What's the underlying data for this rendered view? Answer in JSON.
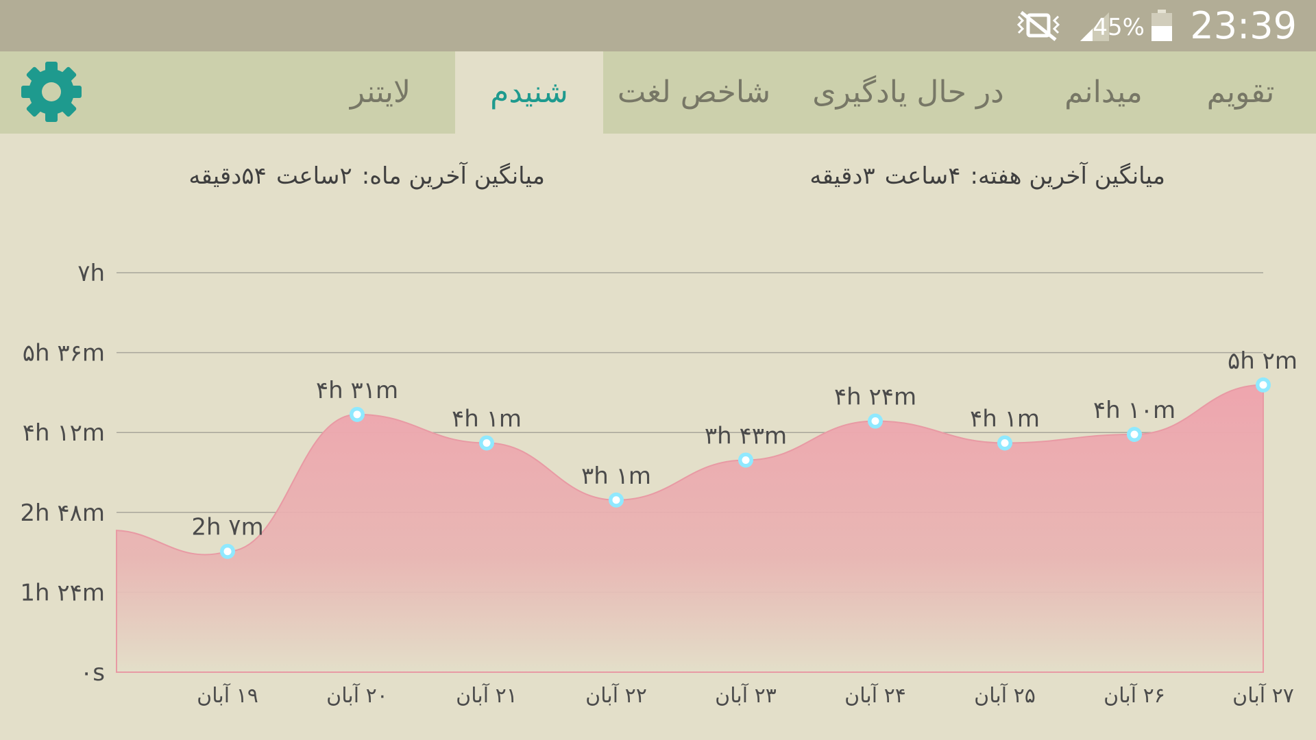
{
  "status_bar": {
    "time": "23:39",
    "battery_percent": "45%",
    "icons": [
      "mute-vibrate-icon",
      "signal-icon",
      "battery-icon"
    ],
    "background": "#b2ad96"
  },
  "tabs": [
    {
      "label": "تقویم",
      "active": false
    },
    {
      "label": "میدانم",
      "active": false
    },
    {
      "label": "در حال یادگیری",
      "active": false
    },
    {
      "label": "شاخص لغت",
      "active": false
    },
    {
      "label": "شنیدم",
      "active": true
    },
    {
      "label": "لایتنر",
      "active": false
    }
  ],
  "settings_icon": "gear-icon",
  "accent_color": "#1e9a8e",
  "averages": {
    "week_label": "میانگین آخرین هفته:",
    "week_hours": "۴ساعت",
    "week_minutes": "۳دقیقه",
    "month_label": "میانگین آخرین ماه:",
    "month_hours": "۲ساعت",
    "month_minutes": "۵۴دقیقه"
  },
  "chart_data": {
    "type": "area",
    "title": "",
    "xlabel": "",
    "ylabel": "",
    "y_tick_labels": [
      "۰s",
      "1h ۲۴m",
      "2h ۴۸m",
      "۴h ۱۲m",
      "۵h ۳۶m",
      "۷h"
    ],
    "y_tick_values_minutes": [
      0,
      84,
      168,
      252,
      336,
      420
    ],
    "ylim_minutes": [
      0,
      420
    ],
    "categories": [
      "۱۹ آبان",
      "۲۰ آبان",
      "۲۱ آبان",
      "۲۲ آبان",
      "۲۳ آبان",
      "۲۴ آبان",
      "۲۵ آبان",
      "۲۶ آبان",
      "۲۷ آبان"
    ],
    "values_minutes": [
      127,
      271,
      241,
      181,
      223,
      264,
      241,
      250,
      302
    ],
    "value_labels": [
      "2h ۷m",
      "۴h ۳۱m",
      "۴h ۱m",
      "۳h ۱m",
      "۳h ۴۳m",
      "۴h ۲۴m",
      "۴h ۱m",
      "۴h ۱۰m",
      "۵h ۲m"
    ],
    "grid": true,
    "fill_color": "#eea5ae",
    "point_color": "#8fe9ff"
  }
}
